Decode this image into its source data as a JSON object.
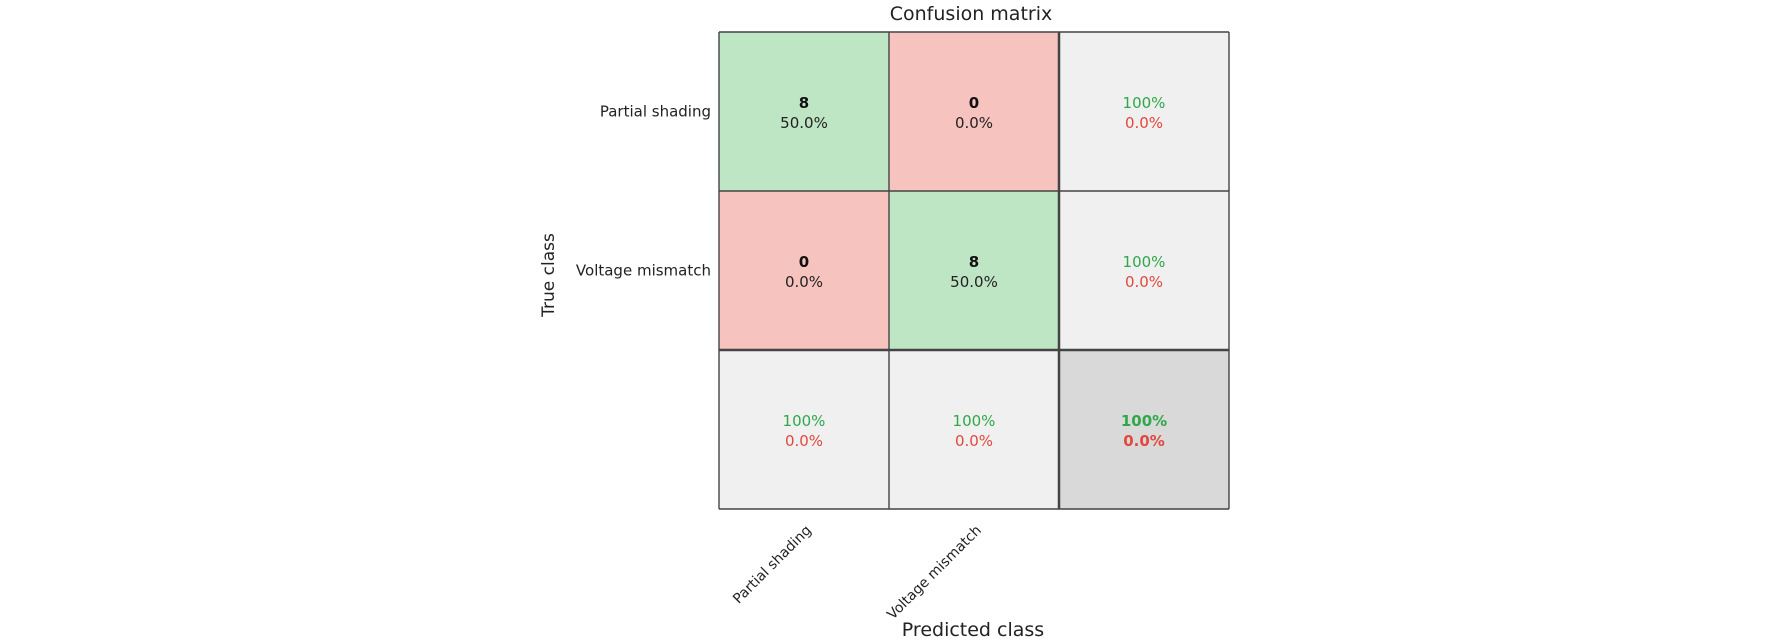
{
  "chart_data": {
    "type": "heatmap",
    "title": "Confusion matrix",
    "xlabel": "Predicted class",
    "ylabel": "True class",
    "classes": [
      "Partial shading",
      "Voltage mismatch"
    ],
    "matrix": [
      [
        8,
        0
      ],
      [
        0,
        8
      ]
    ],
    "cells": [
      [
        {
          "count": "8",
          "percent": "50.0%"
        },
        {
          "count": "0",
          "percent": "0.0%"
        }
      ],
      [
        {
          "count": "0",
          "percent": "0.0%"
        },
        {
          "count": "8",
          "percent": "50.0%"
        }
      ]
    ],
    "row_summary": [
      {
        "correct": "100%",
        "incorrect": "0.0%"
      },
      {
        "correct": "100%",
        "incorrect": "0.0%"
      }
    ],
    "col_summary": [
      {
        "correct": "100%",
        "incorrect": "0.0%"
      },
      {
        "correct": "100%",
        "incorrect": "0.0%"
      }
    ],
    "overall": {
      "correct": "100%",
      "incorrect": "0.0%"
    },
    "colors": {
      "correct_fill": "#bfe6c4",
      "incorrect_fill": "#f7c3bf",
      "summary_fill": "#f0f0f0",
      "overall_fill": "#d9d9d9",
      "green_text": "#2ea84a",
      "red_text": "#e2483d"
    }
  }
}
